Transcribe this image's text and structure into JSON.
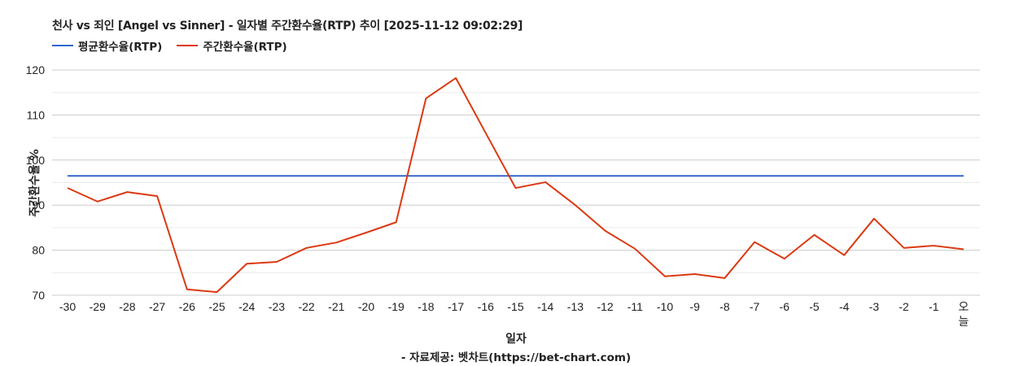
{
  "chart_data": {
    "type": "line",
    "title": "천사 vs 죄인 [Angel vs Sinner] - 일자별 주간환수율(RTP) 추이 [2025-11-12 09:02:29]",
    "xlabel": "일자",
    "ylabel": "주간환수율 %",
    "footer": "- 자료제공: 벳차트(https://bet-chart.com)",
    "ylim": [
      70,
      120
    ],
    "yticks": [
      70,
      80,
      90,
      100,
      110,
      120
    ],
    "grid": true,
    "legend_position": "top-left",
    "categories": [
      "-30",
      "-29",
      "-28",
      "-27",
      "-26",
      "-25",
      "-24",
      "-23",
      "-22",
      "-21",
      "-20",
      "-19",
      "-18",
      "-17",
      "-16",
      "-15",
      "-14",
      "-13",
      "-12",
      "-11",
      "-10",
      "-9",
      "-8",
      "-7",
      "-6",
      "-5",
      "-4",
      "-3",
      "-2",
      "-1",
      "오늘"
    ],
    "series": [
      {
        "name": "평균환수율(RTP)",
        "color": "#3366cc",
        "values": [
          96.5,
          96.5,
          96.5,
          96.5,
          96.5,
          96.5,
          96.5,
          96.5,
          96.5,
          96.5,
          96.5,
          96.5,
          96.5,
          96.5,
          96.5,
          96.5,
          96.5,
          96.5,
          96.5,
          96.5,
          96.5,
          96.5,
          96.5,
          96.5,
          96.5,
          96.5,
          96.5,
          96.5,
          96.5,
          96.5,
          96.5
        ]
      },
      {
        "name": "주간환수율(RTP)",
        "color": "#dc3912",
        "values": [
          93.8,
          90.8,
          92.9,
          92.0,
          71.3,
          70.7,
          77.0,
          77.4,
          80.5,
          81.7,
          83.9,
          86.2,
          113.7,
          118.2,
          106.0,
          93.8,
          95.1,
          90.0,
          84.3,
          80.3,
          74.2,
          74.7,
          73.8,
          81.8,
          78.1,
          83.4,
          78.9,
          87.0,
          80.5,
          81.0,
          80.2
        ]
      }
    ]
  }
}
